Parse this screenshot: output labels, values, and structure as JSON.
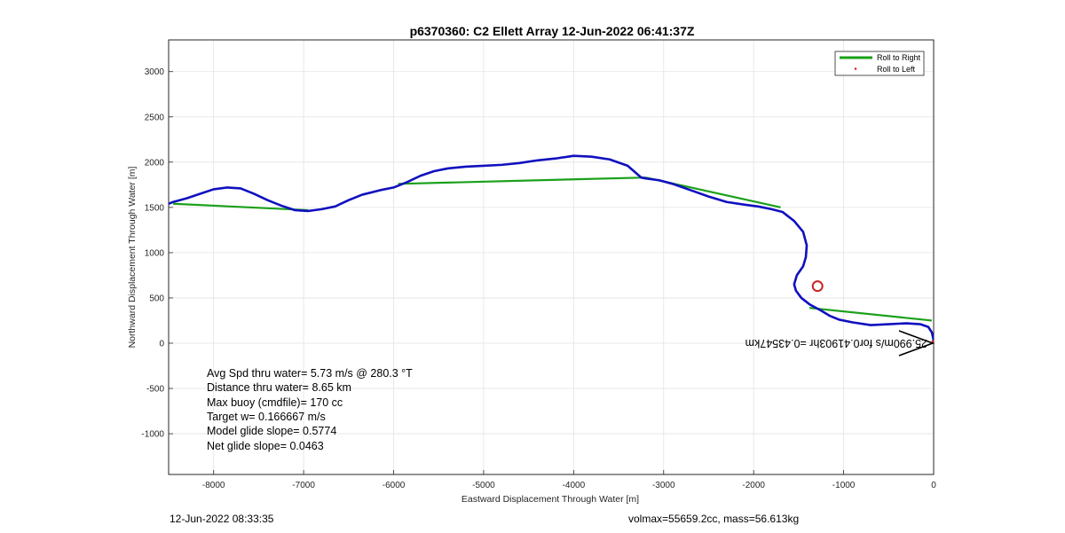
{
  "chart_data": {
    "type": "line",
    "title": "p6370360: C2 Ellett Array 12-Jun-2022 06:41:37Z",
    "xlabel": "Eastward Displacement Through Water [m]",
    "ylabel": "Northward Displacement Through Water [m]",
    "xlim": [
      -8500,
      0
    ],
    "ylim": [
      -1450,
      3350
    ],
    "xticks": [
      -8000,
      -7000,
      -6000,
      -5000,
      -4000,
      -3000,
      -2000,
      -1000,
      0
    ],
    "yticks": [
      -1000,
      -500,
      0,
      500,
      1000,
      1500,
      2000,
      2500,
      3000
    ],
    "grid": true,
    "legend": {
      "placement": "top-right",
      "entries": [
        "Roll to Right",
        "Roll to Left"
      ]
    },
    "colors": {
      "track": "#1010c0",
      "roll_right": "#1aa01a",
      "roll_left": "#e02020",
      "target": "#cc2020",
      "arrow": "#000000"
    },
    "track": {
      "x": [
        0,
        -20,
        -60,
        -150,
        -300,
        -500,
        -700,
        -900,
        -1050,
        -1150,
        -1250,
        -1380,
        -1470,
        -1530,
        -1550,
        -1520,
        -1450,
        -1420,
        -1410,
        -1450,
        -1550,
        -1680,
        -1800,
        -1950,
        -2100,
        -2300,
        -2500,
        -2700,
        -2900,
        -3050,
        -3200,
        -3250,
        -3400,
        -3600,
        -3800,
        -4000,
        -4200,
        -4400,
        -4600,
        -4800,
        -5000,
        -5200,
        -5400,
        -5550,
        -5700,
        -5850,
        -6000,
        -6150,
        -6350,
        -6500,
        -6650,
        -6800,
        -6950,
        -7100,
        -7250,
        -7400,
        -7550,
        -7700,
        -7850,
        -8000,
        -8150,
        -8300,
        -8450,
        -8500
      ],
      "y": [
        30,
        120,
        180,
        210,
        220,
        210,
        200,
        230,
        260,
        300,
        360,
        430,
        500,
        580,
        650,
        750,
        850,
        950,
        1080,
        1230,
        1350,
        1450,
        1480,
        1510,
        1530,
        1560,
        1620,
        1690,
        1760,
        1800,
        1820,
        1830,
        1960,
        2030,
        2060,
        2070,
        2040,
        2020,
        1990,
        1970,
        1960,
        1950,
        1930,
        1900,
        1850,
        1780,
        1720,
        1690,
        1640,
        1580,
        1510,
        1480,
        1460,
        1470,
        1520,
        1580,
        1650,
        1710,
        1720,
        1700,
        1650,
        1600,
        1560,
        1540
      ]
    },
    "roll_right_segments": [
      {
        "x": [
          -20,
          -1380
        ],
        "y": [
          250,
          390
        ]
      },
      {
        "x": [
          -1700,
          -3200
        ],
        "y": [
          1500,
          1830
        ]
      },
      {
        "x": [
          -3200,
          -5950
        ],
        "y": [
          1830,
          1760
        ]
      },
      {
        "x": [
          -6950,
          -8450
        ],
        "y": [
          1470,
          1540
        ]
      }
    ],
    "target_marker": {
      "x": -1290,
      "y": 630
    },
    "current_arrow": {
      "label": "25.990m/s for0.41903hr =0.43547km",
      "origin": {
        "x": -10,
        "y": 0
      }
    },
    "annotations": [
      "Avg Spd thru water=  5.73 m/s @ 280.3 °T",
      "Distance thru water=  8.65 km",
      "Max buoy (cmdfile)= 170 cc",
      "Target w= 0.166667 m/s",
      "Model glide slope= 0.5774",
      "Net glide slope= 0.0463"
    ]
  },
  "footer": {
    "left": "12-Jun-2022 08:33:35",
    "right": "volmax=55659.2cc, mass=56.613kg"
  }
}
